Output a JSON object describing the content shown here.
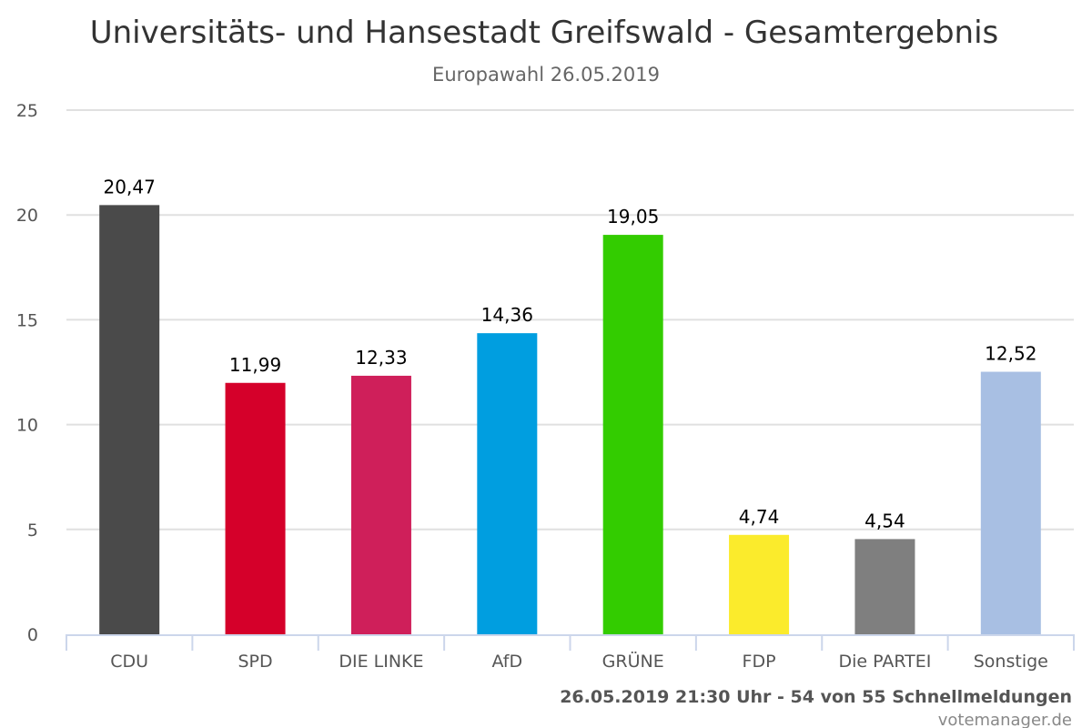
{
  "chart_data": {
    "type": "bar",
    "title": "Universitäts- und Hansestadt Greifswald - Gesamtergebnis",
    "subtitle": "Europawahl 26.05.2019",
    "categories": [
      "CDU",
      "SPD",
      "DIE LINKE",
      "AfD",
      "GRÜNE",
      "FDP",
      "Die PARTEI",
      "Sonstige"
    ],
    "values": [
      20.47,
      11.99,
      12.33,
      14.36,
      19.05,
      4.74,
      4.54,
      12.52
    ],
    "data_labels": [
      "20,47",
      "11,99",
      "12,33",
      "14,36",
      "19,05",
      "4,74",
      "4,54",
      "12,52"
    ],
    "colors": [
      "#4a4a4a",
      "#d5002a",
      "#cf1f5a",
      "#009ee0",
      "#33cc00",
      "#fbeb2c",
      "#7f7f7f",
      "#a8bfe3"
    ],
    "ylim": [
      0,
      25
    ],
    "yticks": [
      0,
      5,
      10,
      15,
      20,
      25
    ],
    "grid": true,
    "legend": "none"
  },
  "footer": {
    "status": "26.05.2019 21:30 Uhr - 54 von 55 Schnellmeldungen",
    "source": "votemanager.de"
  }
}
